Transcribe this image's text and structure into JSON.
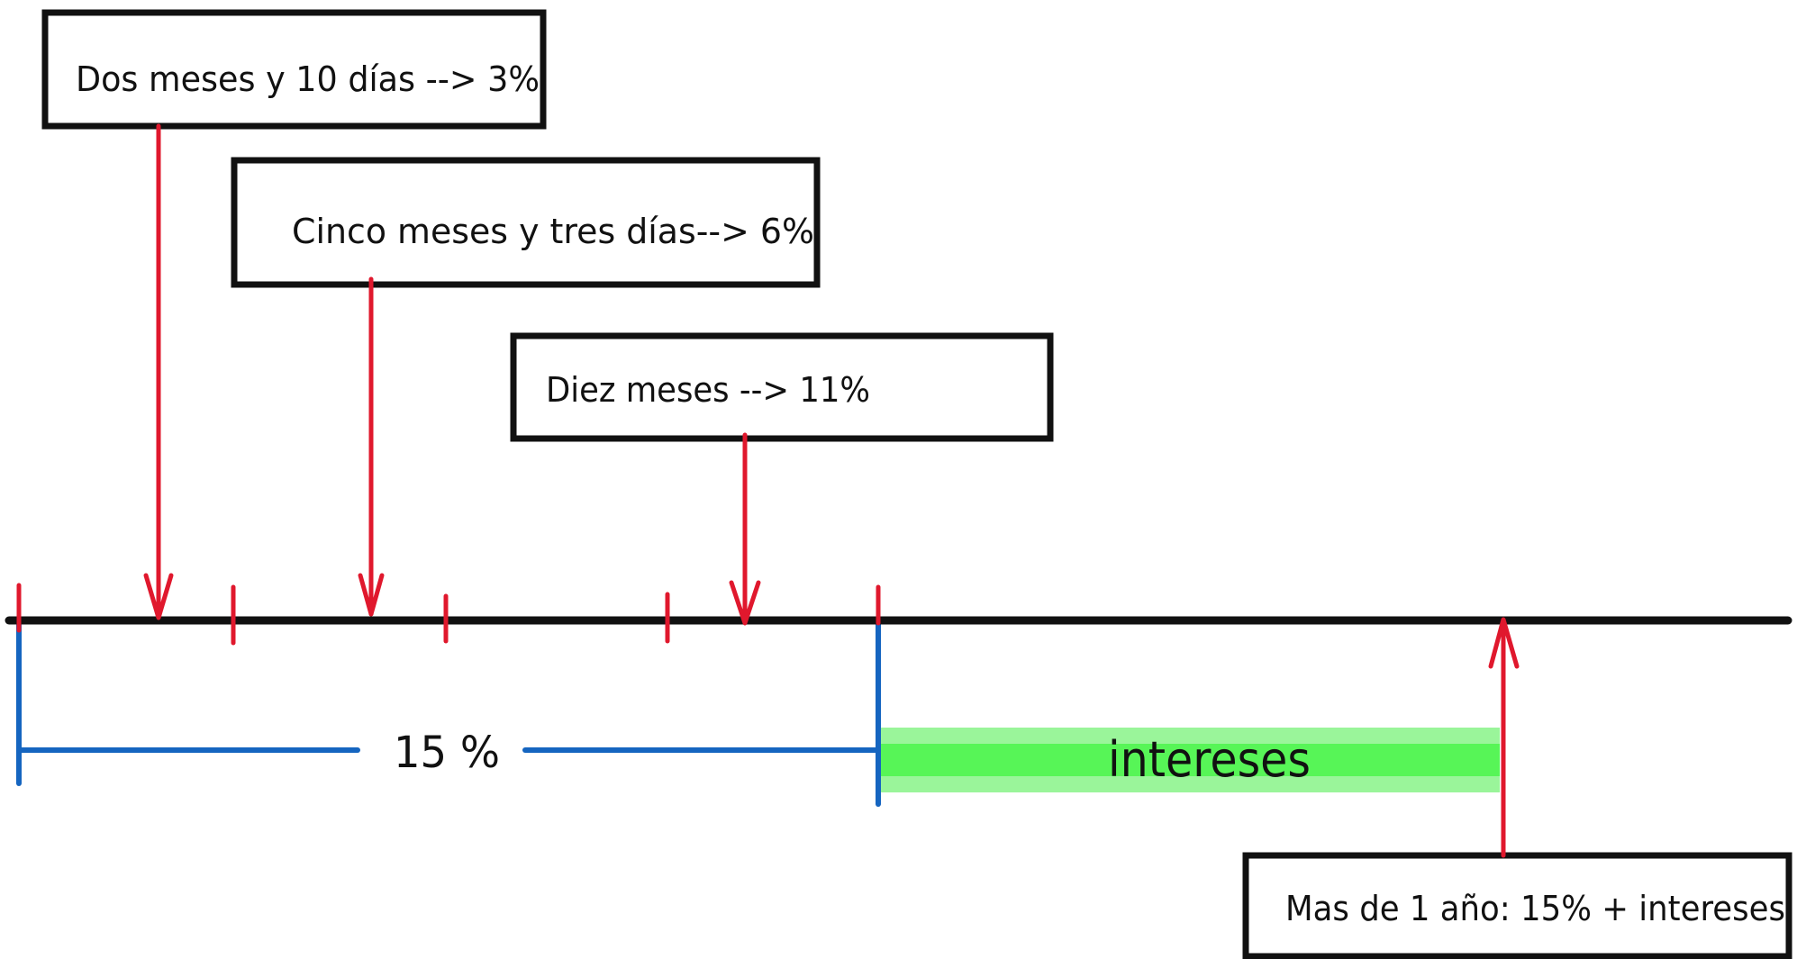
{
  "notes": {
    "two_months": "Dos meses y 10 días --> 3%",
    "five_months": "Cinco meses y tres días--> 6%",
    "ten_months": "Diez meses --> 11%",
    "over_one_year": "Mas de 1 año: 15% + intereses"
  },
  "span_label": "15 %",
  "interest_label": "intereses",
  "colors": {
    "ink": "#111111",
    "arrow": "#e0182d",
    "bracket": "#1565c0",
    "interest_light": "#9af59a",
    "interest_dark": "#57f557"
  }
}
